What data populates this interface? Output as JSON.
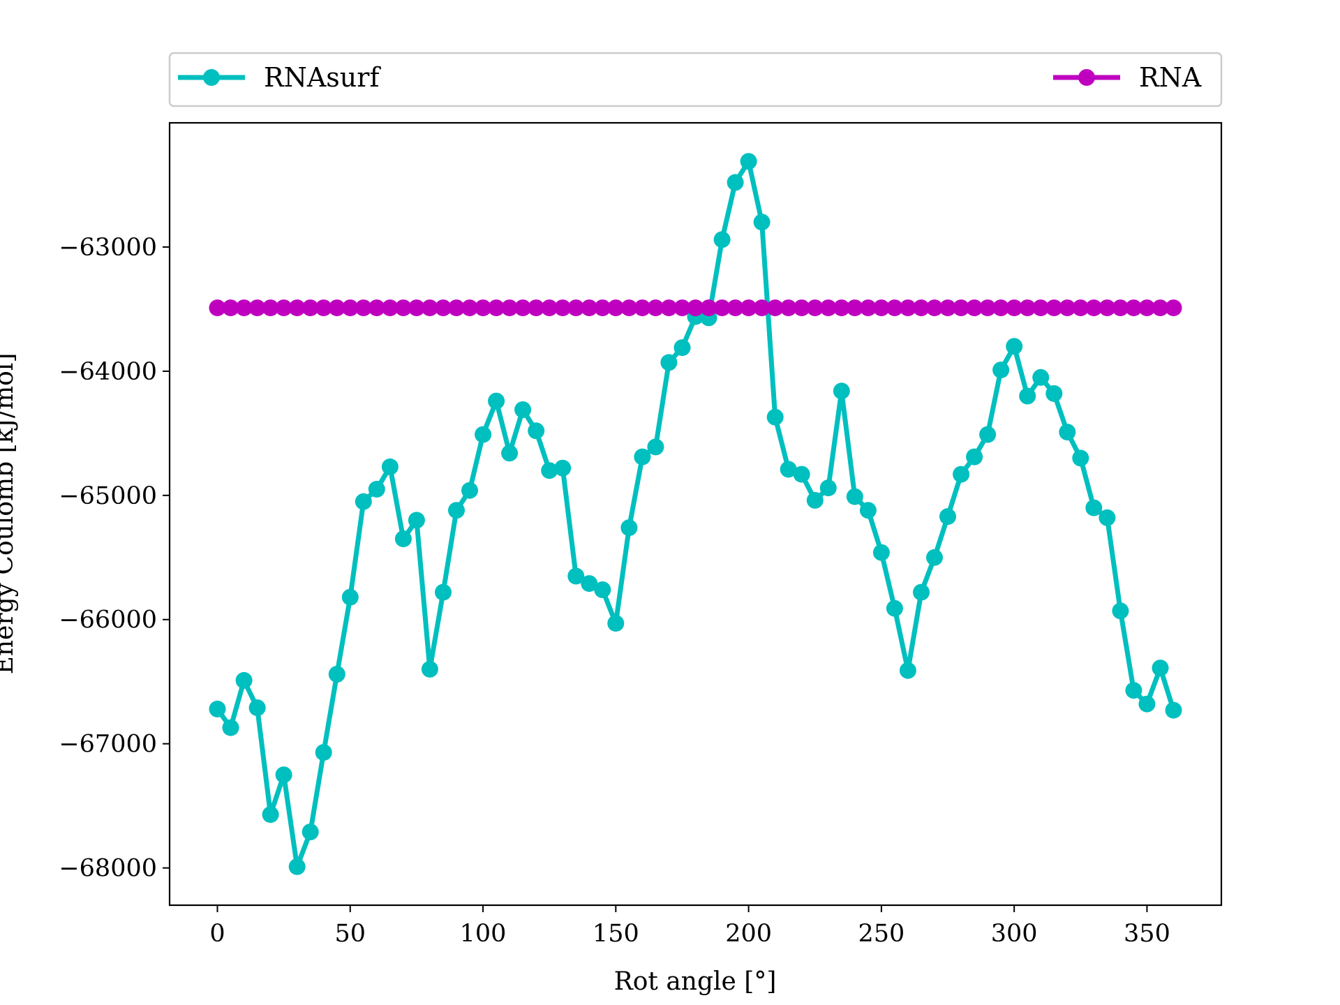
{
  "chart_data": {
    "type": "line",
    "xlabel": "Rot angle [°]",
    "ylabel": "Energy Coulomb [kJ/mol]",
    "xlim": [
      -18,
      378
    ],
    "ylim": [
      -68300,
      -62000
    ],
    "xticks": [
      0,
      50,
      100,
      150,
      200,
      250,
      300,
      350
    ],
    "yticks": [
      -63000,
      -64000,
      -65000,
      -66000,
      -67000,
      -68000
    ],
    "ytick_labels": [
      "−63000",
      "−64000",
      "−65000",
      "−66000",
      "−67000",
      "−68000"
    ],
    "legend_position": "top (outside plot)",
    "grid": false,
    "x": [
      0,
      5,
      10,
      15,
      20,
      25,
      30,
      35,
      40,
      45,
      50,
      55,
      60,
      65,
      70,
      75,
      80,
      85,
      90,
      95,
      100,
      105,
      110,
      115,
      120,
      125,
      130,
      135,
      140,
      145,
      150,
      155,
      160,
      165,
      170,
      175,
      180,
      185,
      190,
      195,
      200,
      205,
      210,
      215,
      220,
      225,
      230,
      235,
      240,
      245,
      250,
      255,
      260,
      265,
      270,
      275,
      280,
      285,
      290,
      295,
      300,
      305,
      310,
      315,
      320,
      325,
      330,
      335,
      340,
      345,
      350,
      355,
      360
    ],
    "series": [
      {
        "name": "RNAsurf",
        "color": "#00bfbf",
        "values": [
          -66720,
          -66870,
          -66490,
          -66710,
          -67570,
          -67250,
          -67990,
          -67710,
          -67070,
          -66440,
          -65820,
          -65050,
          -64950,
          -64770,
          -65350,
          -65200,
          -66400,
          -65780,
          -65120,
          -64960,
          -64510,
          -64240,
          -64660,
          -64310,
          -64480,
          -64800,
          -64780,
          -65650,
          -65710,
          -65760,
          -66030,
          -65260,
          -64690,
          -64610,
          -63930,
          -63810,
          -63560,
          -63570,
          -62940,
          -62480,
          -62310,
          -62800,
          -64370,
          -64790,
          -64830,
          -65040,
          -64940,
          -64160,
          -65010,
          -65120,
          -65460,
          -65910,
          -66410,
          -65780,
          -65500,
          -65170,
          -64830,
          -64690,
          -64510,
          -63990,
          -63800,
          -64200,
          -64050,
          -64180,
          -64490,
          -64700,
          -65100,
          -65180,
          -65930,
          -66570,
          -66680,
          -66390,
          -66730
        ]
      },
      {
        "name": "RNA",
        "color": "#bf00bf",
        "values": [
          -63490,
          -63490,
          -63490,
          -63490,
          -63490,
          -63490,
          -63490,
          -63490,
          -63490,
          -63490,
          -63490,
          -63490,
          -63490,
          -63490,
          -63490,
          -63490,
          -63490,
          -63490,
          -63490,
          -63490,
          -63490,
          -63490,
          -63490,
          -63490,
          -63490,
          -63490,
          -63490,
          -63490,
          -63490,
          -63490,
          -63490,
          -63490,
          -63490,
          -63490,
          -63490,
          -63490,
          -63490,
          -63490,
          -63490,
          -63490,
          -63490,
          -63490,
          -63490,
          -63490,
          -63490,
          -63490,
          -63490,
          -63490,
          -63490,
          -63490,
          -63490,
          -63490,
          -63490,
          -63490,
          -63490,
          -63490,
          -63490,
          -63490,
          -63490,
          -63490,
          -63490,
          -63490,
          -63490,
          -63490,
          -63490,
          -63490,
          -63490,
          -63490,
          -63490,
          -63490,
          -63490,
          -63490,
          -63490
        ]
      }
    ]
  }
}
